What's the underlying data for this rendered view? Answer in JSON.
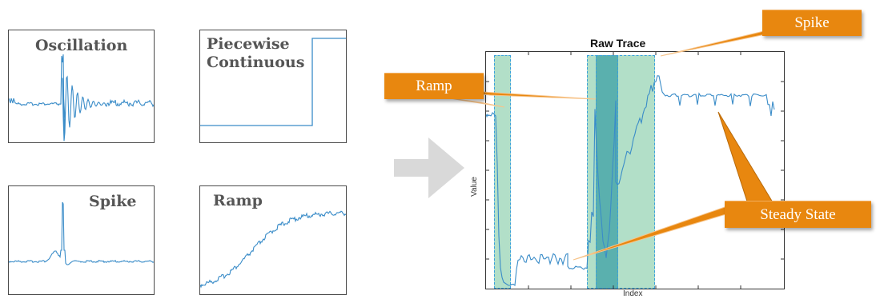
{
  "patterns": [
    {
      "id": "oscillation",
      "title": "Oscillation"
    },
    {
      "id": "piecewise",
      "title": "Piecewise\nContinuous"
    },
    {
      "id": "spike",
      "title": "Spike"
    },
    {
      "id": "ramp",
      "title": "Ramp"
    }
  ],
  "raw_trace": {
    "title": "Raw Trace",
    "xlabel": "Index",
    "ylabel": "Value"
  },
  "callouts": {
    "ramp": "Ramp",
    "spike": "Spike",
    "steady_state": "Steady State"
  },
  "colors": {
    "trace": "#3a8cc8",
    "callout": "#e8870f",
    "highlight_light": "#73c49b",
    "highlight_dark": "#3ca0a5",
    "highlight_border": "#3aa0dd",
    "arrow": "#d9d9d9"
  }
}
